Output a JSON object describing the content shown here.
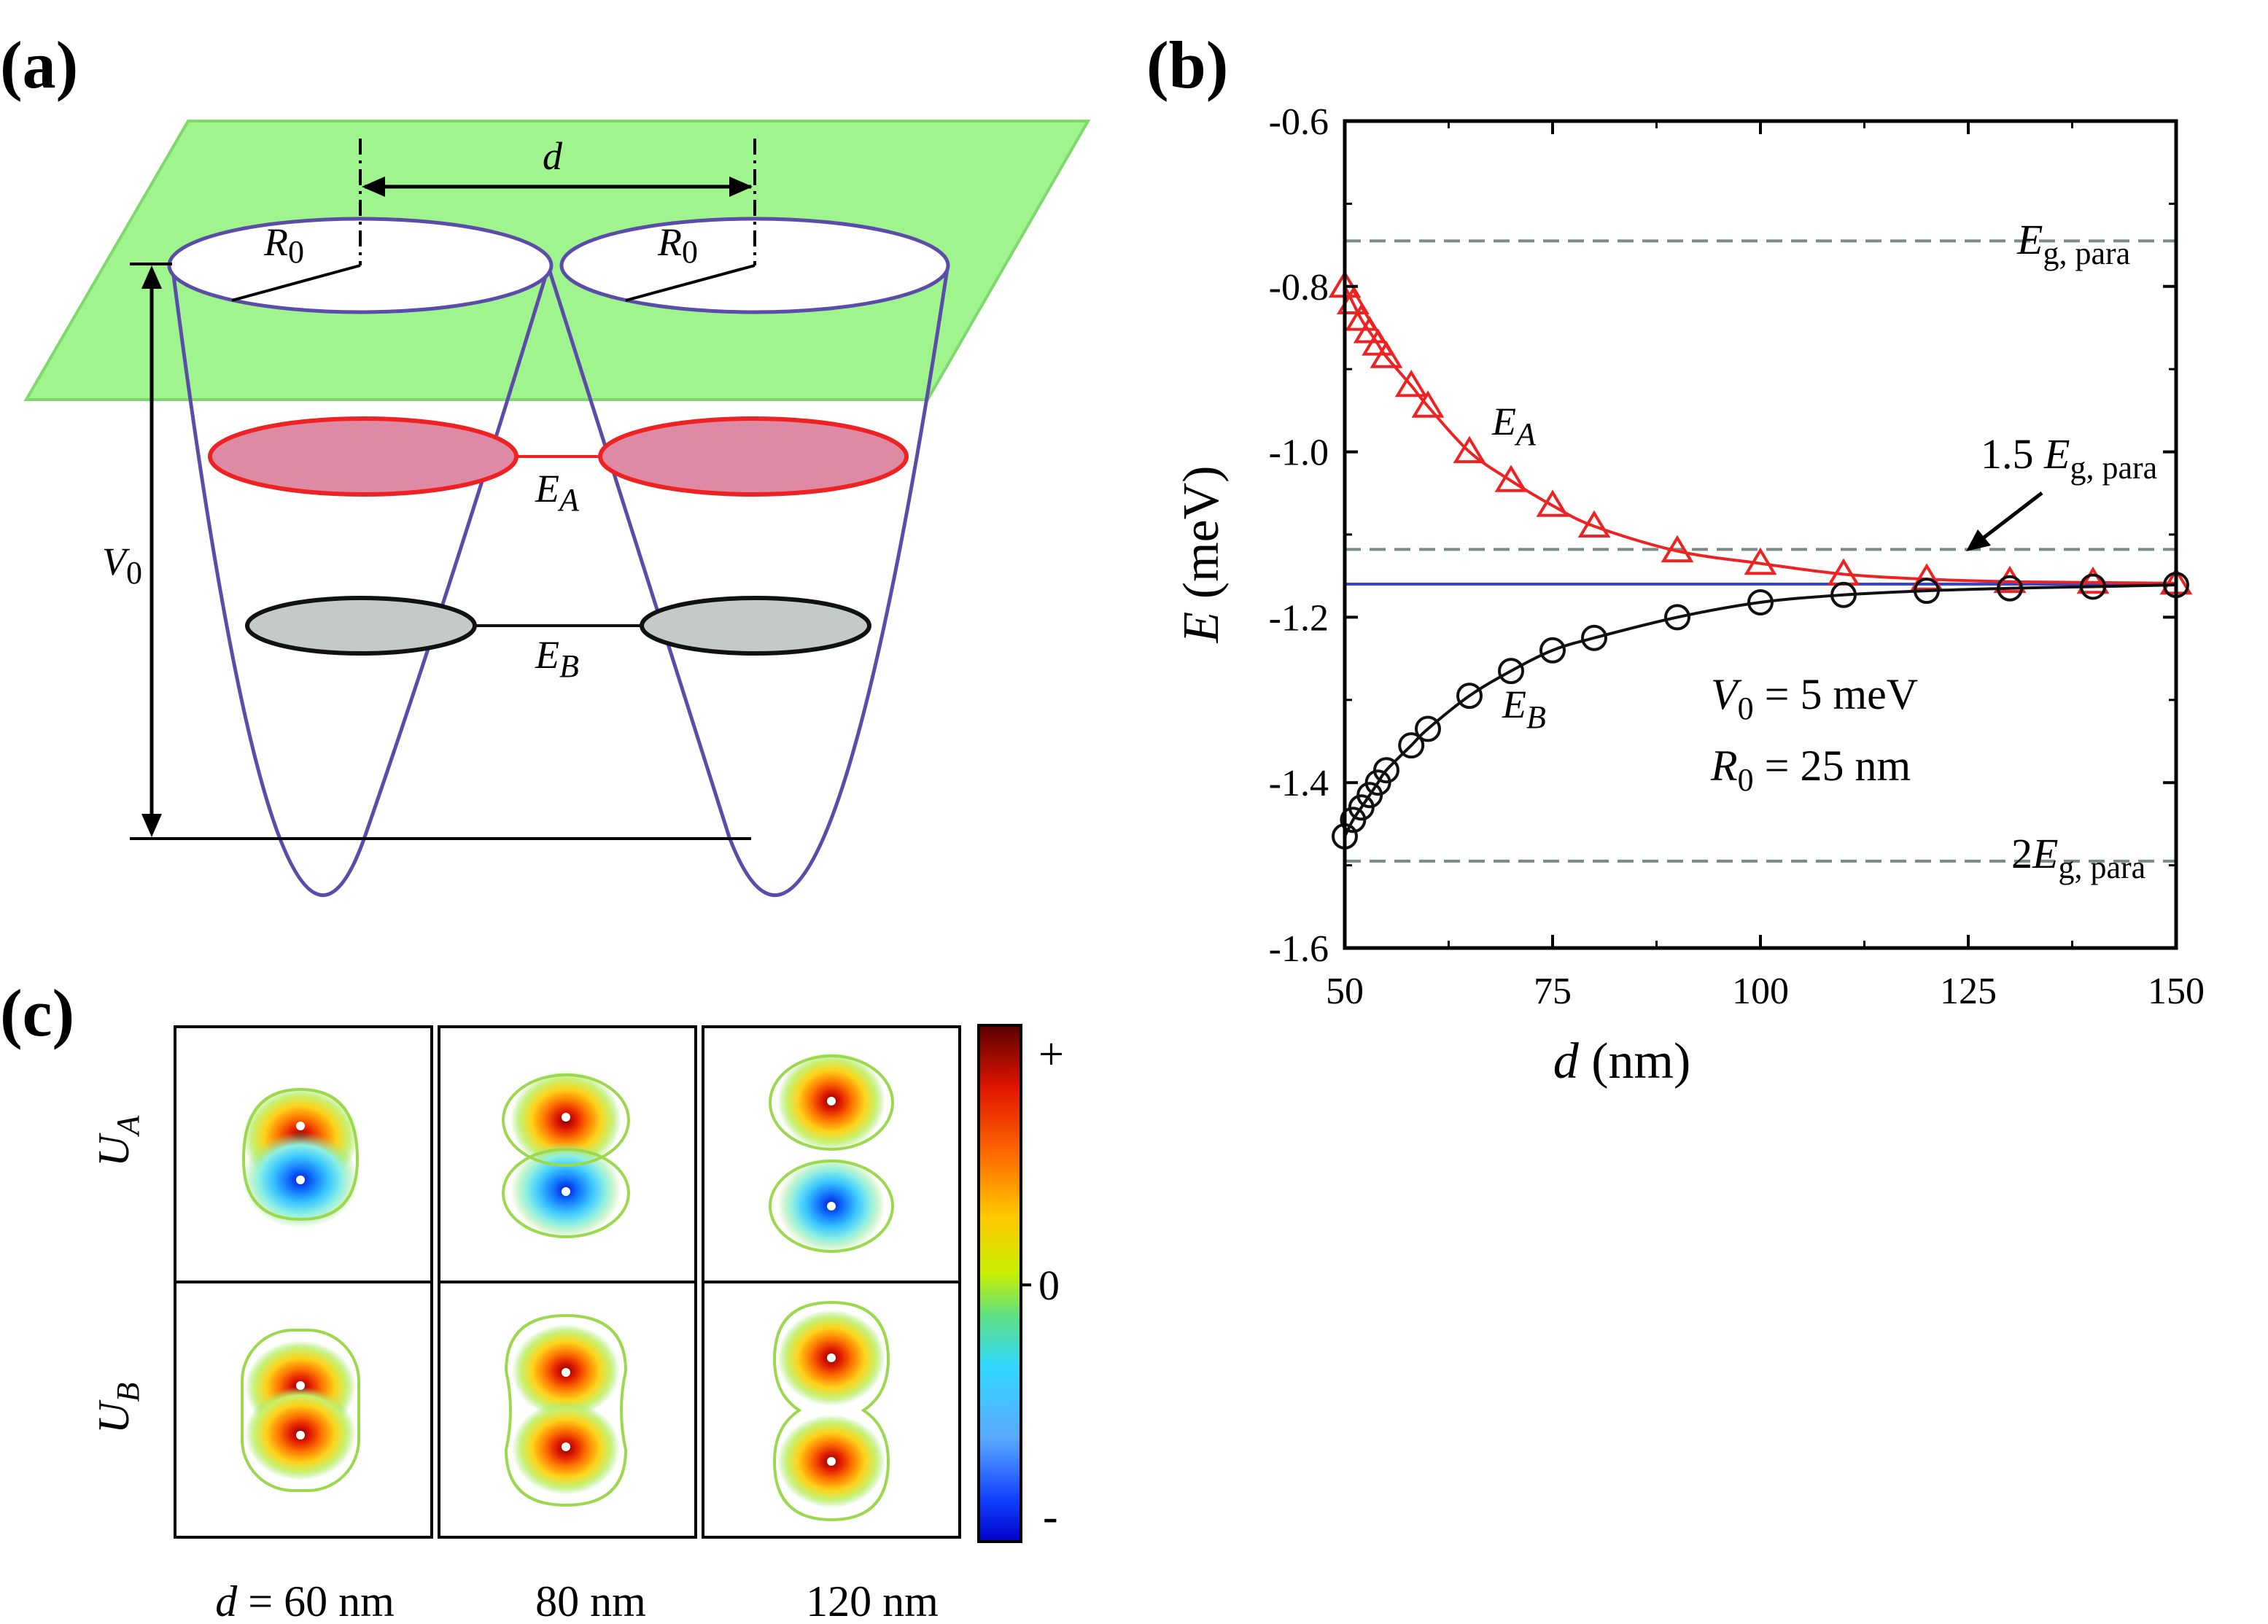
{
  "panels": {
    "a": {
      "label": "(a)",
      "d_label": "d",
      "r0_left": "R",
      "r0_left_sub": "0",
      "r0_right": "R",
      "r0_right_sub": "0",
      "v0_label": "V",
      "v0_sub": "0",
      "ea_label": "E",
      "ea_sub": "A",
      "eb_label": "E",
      "eb_sub": "B"
    },
    "b": {
      "label": "(b)",
      "xlabel_sym": "d",
      "xlabel_unit": " (nm)",
      "ylabel_sym": "E",
      "ylabel_unit": " (meV)",
      "ea_label": "E",
      "ea_sub": "A",
      "eb_label": "E",
      "eb_sub": "B",
      "params_line1_sym": "V",
      "params_line1_sub": "0",
      "params_line1_val": " = 5 meV",
      "params_line2_sym": "R",
      "params_line2_sub": "0",
      "params_line2_val": " = 25 nm",
      "ref_top_sym": "E",
      "ref_top_sub": "g, para",
      "ref_mid_pre": "1.5 ",
      "ref_mid_sym": "E",
      "ref_mid_sub": "g, para",
      "ref_bot_pre": "2",
      "ref_bot_sym": "E",
      "ref_bot_sub": "g, para"
    },
    "c": {
      "label": "(c)",
      "row_a_sym": "U",
      "row_a_sub": "A",
      "row_b_sym": "U",
      "row_b_sub": "B",
      "col1_sym": "d",
      "col1_rest": " = 60 nm",
      "col2": "80 nm",
      "col3": "120 nm",
      "colorbar_plus": "+",
      "colorbar_zero": "0",
      "colorbar_minus": "-"
    }
  },
  "colors": {
    "plane": "#8ef27a",
    "well": "#5a4ca8",
    "ea": "#ee2222",
    "ea_fill": "#df8aa4",
    "eb": "#111111",
    "eb_fill": "#c4cac8",
    "limit_line": "#3347cc",
    "ref_dash": "#7a8a88"
  },
  "chart_data": {
    "type": "scatter",
    "title": "",
    "xlabel": "d (nm)",
    "ylabel": "E (meV)",
    "xlim": [
      50,
      150
    ],
    "ylim": [
      -1.6,
      -0.6
    ],
    "xticks": [
      "50",
      "75",
      "100",
      "125",
      "150"
    ],
    "yticks": [
      "-0.6",
      "-0.8",
      "-1.0",
      "-1.2",
      "-1.4",
      "-1.6"
    ],
    "xtick_values": [
      50,
      75,
      100,
      125,
      150
    ],
    "ytick_values": [
      -0.6,
      -0.8,
      -1.0,
      -1.2,
      -1.4,
      -1.6
    ],
    "series": [
      {
        "name": "E_A",
        "marker": "triangle",
        "color": "#ee2222",
        "x": [
          50,
          51,
          52,
          53,
          54,
          55,
          58,
          60,
          65,
          70,
          75,
          80,
          90,
          100,
          110,
          120,
          130,
          140,
          150
        ],
        "y": [
          -0.8,
          -0.82,
          -0.84,
          -0.855,
          -0.87,
          -0.885,
          -0.92,
          -0.945,
          -1.0,
          -1.035,
          -1.065,
          -1.09,
          -1.12,
          -1.135,
          -1.148,
          -1.154,
          -1.157,
          -1.158,
          -1.159
        ]
      },
      {
        "name": "E_B",
        "marker": "circle",
        "color": "#111111",
        "x": [
          50,
          51,
          52,
          53,
          54,
          55,
          58,
          60,
          65,
          70,
          75,
          80,
          90,
          100,
          110,
          120,
          130,
          140,
          150
        ],
        "y": [
          -1.465,
          -1.445,
          -1.43,
          -1.415,
          -1.4,
          -1.385,
          -1.355,
          -1.335,
          -1.295,
          -1.265,
          -1.24,
          -1.225,
          -1.2,
          -1.182,
          -1.173,
          -1.168,
          -1.165,
          -1.163,
          -1.161
        ]
      }
    ],
    "reference_lines": [
      {
        "name": "E_g,para",
        "y": -0.745,
        "style": "dashed"
      },
      {
        "name": "1.5 E_g,para",
        "y": -1.118,
        "style": "dashed"
      },
      {
        "name": "2E_g,para",
        "y": -1.495,
        "style": "dashed"
      },
      {
        "name": "limit",
        "y": -1.16,
        "style": "solid"
      }
    ]
  }
}
